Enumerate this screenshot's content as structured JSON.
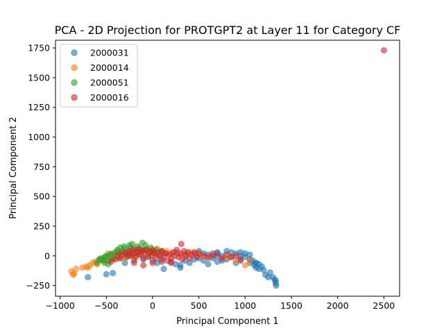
{
  "chart_data": {
    "type": "scatter",
    "title": "PCA - 2D Projection for PROTGPT2 at Layer 11 for Category CF",
    "xlabel": "Principal Component 1",
    "ylabel": "Principal Component 2",
    "xlim": [
      -1050,
      2670
    ],
    "ylim": [
      -340,
      1815
    ],
    "xticks": [
      -1000,
      -500,
      0,
      500,
      1000,
      1500,
      2000,
      2500
    ],
    "xtick_labels": [
      "−1000",
      "−500",
      "0",
      "500",
      "1000",
      "1500",
      "2000",
      "2500"
    ],
    "yticks": [
      -250,
      0,
      250,
      500,
      750,
      1000,
      1250,
      1500,
      1750
    ],
    "ytick_labels": [
      "−250",
      "0",
      "250",
      "500",
      "750",
      "1000",
      "1250",
      "1500",
      "1750"
    ],
    "grid": false,
    "legend": "top-left",
    "series": [
      {
        "name": "2000031",
        "color": "#1f77b4",
        "points": [
          [
            -700,
            -180
          ],
          [
            -500,
            -155
          ],
          [
            -430,
            -145
          ],
          [
            -300,
            -60
          ],
          [
            -200,
            -40
          ],
          [
            -100,
            -30
          ],
          [
            0,
            -40
          ],
          [
            50,
            -60
          ],
          [
            100,
            -30
          ],
          [
            120,
            -110
          ],
          [
            200,
            -50
          ],
          [
            250,
            -70
          ],
          [
            300,
            -80
          ],
          [
            300,
            -100
          ],
          [
            350,
            -40
          ],
          [
            400,
            -60
          ],
          [
            450,
            -30
          ],
          [
            500,
            -20
          ],
          [
            550,
            20
          ],
          [
            600,
            10
          ],
          [
            650,
            -20
          ],
          [
            700,
            30
          ],
          [
            700,
            -50
          ],
          [
            750,
            0
          ],
          [
            800,
            40
          ],
          [
            800,
            -30
          ],
          [
            850,
            30
          ],
          [
            900,
            20
          ],
          [
            900,
            -60
          ],
          [
            950,
            0
          ],
          [
            950,
            30
          ],
          [
            1000,
            -10
          ],
          [
            1000,
            20
          ],
          [
            1050,
            -30
          ],
          [
            1050,
            10
          ],
          [
            1080,
            -40
          ],
          [
            1100,
            -80
          ],
          [
            1110,
            -60
          ],
          [
            1120,
            -100
          ],
          [
            1150,
            -110
          ],
          [
            1150,
            -70
          ],
          [
            1180,
            -90
          ],
          [
            1200,
            -120
          ],
          [
            1220,
            -160
          ],
          [
            1250,
            -180
          ],
          [
            1270,
            -140
          ],
          [
            1300,
            -180
          ],
          [
            1320,
            -200
          ],
          [
            1330,
            -210
          ],
          [
            1330,
            -230
          ],
          [
            1335,
            -250
          ],
          [
            150,
            20
          ],
          [
            250,
            30
          ],
          [
            350,
            10
          ],
          [
            450,
            20
          ],
          [
            550,
            -40
          ],
          [
            650,
            0
          ],
          [
            750,
            -40
          ],
          [
            850,
            -10
          ],
          [
            600,
            -70
          ],
          [
            700,
            20
          ],
          [
            500,
            40
          ],
          [
            950,
            -40
          ],
          [
            1050,
            -60
          ],
          [
            1120,
            -60
          ]
        ]
      },
      {
        "name": "2000014",
        "color": "#ff7f0e",
        "points": [
          [
            -880,
            -130
          ],
          [
            -860,
            -160
          ],
          [
            -850,
            -150
          ],
          [
            -830,
            -110
          ],
          [
            -760,
            -100
          ],
          [
            -720,
            -90
          ],
          [
            -700,
            -100
          ],
          [
            -680,
            -80
          ],
          [
            -650,
            -60
          ],
          [
            -620,
            -50
          ],
          [
            -600,
            -70
          ],
          [
            -580,
            -40
          ],
          [
            -550,
            -30
          ],
          [
            -520,
            -40
          ],
          [
            -500,
            -10
          ],
          [
            -480,
            20
          ],
          [
            -450,
            0
          ],
          [
            -420,
            -20
          ],
          [
            -400,
            20
          ],
          [
            -380,
            40
          ],
          [
            -350,
            30
          ],
          [
            -300,
            20
          ],
          [
            -250,
            10
          ],
          [
            -200,
            40
          ],
          [
            -150,
            30
          ],
          [
            -100,
            50
          ],
          [
            -50,
            40
          ],
          [
            0,
            30
          ],
          [
            50,
            60
          ],
          [
            100,
            30
          ],
          [
            150,
            40
          ],
          [
            200,
            20
          ],
          [
            300,
            10
          ],
          [
            400,
            30
          ],
          [
            500,
            10
          ],
          [
            600,
            -20
          ],
          [
            800,
            -20
          ],
          [
            900,
            -40
          ],
          [
            1000,
            -80
          ],
          [
            1050,
            -40
          ],
          [
            -300,
            -20
          ],
          [
            -200,
            -10
          ]
        ]
      },
      {
        "name": "2000051",
        "color": "#2ca02c",
        "points": [
          [
            -600,
            -60
          ],
          [
            -580,
            -30
          ],
          [
            -560,
            -20
          ],
          [
            -540,
            -40
          ],
          [
            -520,
            -10
          ],
          [
            -500,
            0
          ],
          [
            -480,
            -40
          ],
          [
            -460,
            10
          ],
          [
            -440,
            20
          ],
          [
            -420,
            -20
          ],
          [
            -400,
            30
          ],
          [
            -380,
            50
          ],
          [
            -360,
            20
          ],
          [
            -350,
            70
          ],
          [
            -330,
            40
          ],
          [
            -310,
            80
          ],
          [
            -300,
            60
          ],
          [
            -280,
            10
          ],
          [
            -260,
            40
          ],
          [
            -250,
            90
          ],
          [
            -240,
            70
          ],
          [
            -220,
            100
          ],
          [
            -200,
            60
          ],
          [
            -180,
            30
          ],
          [
            -160,
            80
          ],
          [
            -140,
            60
          ],
          [
            -120,
            40
          ],
          [
            -110,
            110
          ],
          [
            -100,
            50
          ],
          [
            -80,
            90
          ],
          [
            -60,
            60
          ],
          [
            -40,
            30
          ],
          [
            -20,
            70
          ],
          [
            0,
            40
          ],
          [
            20,
            20
          ],
          [
            40,
            50
          ],
          [
            60,
            10
          ],
          [
            100,
            40
          ],
          [
            -450,
            -30
          ],
          [
            -350,
            -20
          ],
          [
            -250,
            0
          ],
          [
            -150,
            10
          ],
          [
            -50,
            0
          ],
          [
            -520,
            -60
          ],
          [
            -480,
            -70
          ]
        ]
      },
      {
        "name": "2000016",
        "color": "#d62728",
        "points": [
          [
            -450,
            -50
          ],
          [
            -400,
            -30
          ],
          [
            -380,
            0
          ],
          [
            -350,
            -20
          ],
          [
            -330,
            10
          ],
          [
            -300,
            30
          ],
          [
            -280,
            -10
          ],
          [
            -260,
            20
          ],
          [
            -250,
            40
          ],
          [
            -230,
            0
          ],
          [
            -210,
            50
          ],
          [
            -200,
            20
          ],
          [
            -180,
            -10
          ],
          [
            -160,
            30
          ],
          [
            -150,
            60
          ],
          [
            -130,
            10
          ],
          [
            -110,
            40
          ],
          [
            -100,
            -20
          ],
          [
            -90,
            20
          ],
          [
            -70,
            50
          ],
          [
            -50,
            -10
          ],
          [
            -30,
            30
          ],
          [
            -10,
            0
          ],
          [
            0,
            50
          ],
          [
            20,
            20
          ],
          [
            40,
            -20
          ],
          [
            60,
            30
          ],
          [
            80,
            0
          ],
          [
            100,
            40
          ],
          [
            120,
            -10
          ],
          [
            140,
            20
          ],
          [
            160,
            -40
          ],
          [
            180,
            10
          ],
          [
            200,
            -20
          ],
          [
            220,
            30
          ],
          [
            240,
            0
          ],
          [
            260,
            50
          ],
          [
            280,
            -10
          ],
          [
            300,
            20
          ],
          [
            310,
            100
          ],
          [
            320,
            -30
          ],
          [
            340,
            40
          ],
          [
            360,
            0
          ],
          [
            380,
            30
          ],
          [
            400,
            -20
          ],
          [
            420,
            10
          ],
          [
            450,
            30
          ],
          [
            480,
            -10
          ],
          [
            500,
            20
          ],
          [
            550,
            0
          ],
          [
            600,
            -10
          ],
          [
            650,
            20
          ],
          [
            700,
            0
          ],
          [
            750,
            -20
          ],
          [
            800,
            10
          ],
          [
            850,
            -10
          ],
          [
            900,
            0
          ],
          [
            950,
            -30
          ],
          [
            -100,
            -80
          ],
          [
            -200,
            -60
          ],
          [
            0,
            -60
          ],
          [
            100,
            -50
          ],
          [
            200,
            -60
          ],
          [
            2500,
            1730
          ]
        ]
      }
    ]
  }
}
